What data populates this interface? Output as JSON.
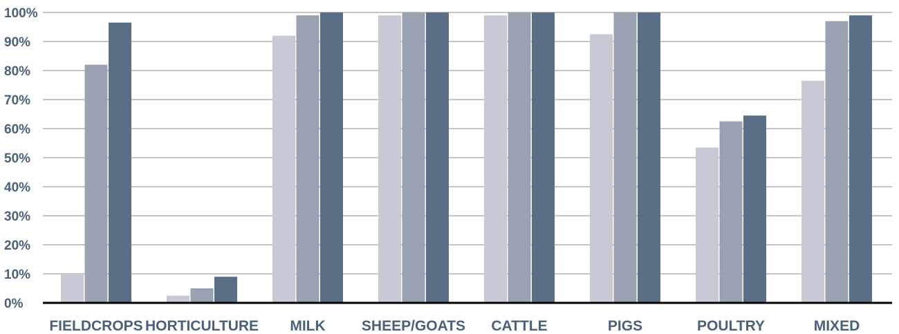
{
  "chart_data": {
    "type": "bar",
    "categories": [
      "FIELDCROPS",
      "HORTICULTURE",
      "MILK",
      "SHEEP/GOATS",
      "CATTLE",
      "PIGS",
      "POULTRY",
      "MIXED"
    ],
    "series": [
      {
        "values": [
          10,
          2.5,
          92,
          99,
          99,
          92.5,
          53.5,
          76.5
        ]
      },
      {
        "values": [
          82,
          5,
          99,
          100,
          100,
          100,
          62.5,
          97
        ]
      },
      {
        "values": [
          96.5,
          9,
          100,
          100,
          100,
          100,
          64.5,
          99
        ]
      }
    ],
    "y_ticks": [
      "0%",
      "10%",
      "20%",
      "30%",
      "40%",
      "50%",
      "60%",
      "70%",
      "80%",
      "90%",
      "100%"
    ],
    "ylim": [
      0,
      100
    ],
    "grid": true,
    "colors": {
      "series": [
        "#c7cad5",
        "#9aa1b0",
        "#5a6f86"
      ],
      "grid": "#8c8c8c",
      "axis": "#000000",
      "labels": "#4b6079"
    }
  }
}
